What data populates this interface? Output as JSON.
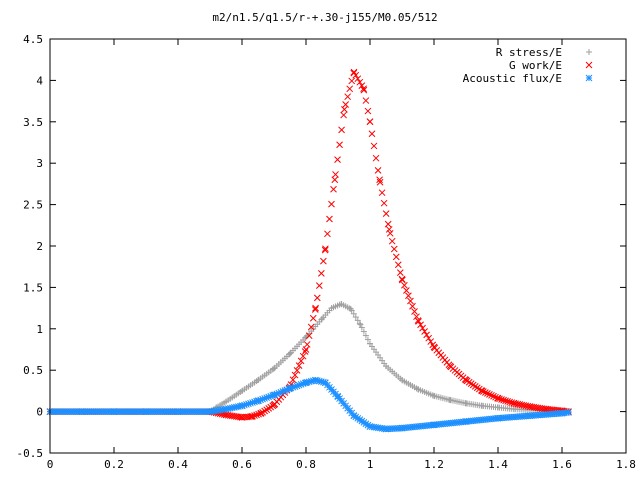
{
  "chart_data": {
    "type": "scatter",
    "title": "m2/n1.5/q1.5/r-+.30-j155/M0.05/512",
    "xlabel": "",
    "ylabel": "",
    "xlim": [
      0,
      1.8
    ],
    "ylim": [
      -0.5,
      4.5
    ],
    "grid": false,
    "legend_position": "top-right",
    "xticks": [
      "0",
      "0.2",
      "0.4",
      "0.6",
      "0.8",
      "1",
      "1.2",
      "1.4",
      "1.6",
      "1.8"
    ],
    "yticks": [
      "-0.5",
      "0",
      "0.5",
      "1",
      "1.5",
      "2",
      "2.5",
      "3",
      "3.5",
      "4",
      "4.5"
    ],
    "series": [
      {
        "name": "R stress/E",
        "color": "#a0a0a0",
        "marker": "plus",
        "x": [
          0,
          0.1,
          0.2,
          0.3,
          0.4,
          0.5,
          0.52,
          0.55,
          0.6,
          0.65,
          0.7,
          0.75,
          0.8,
          0.85,
          0.88,
          0.91,
          0.94,
          0.97,
          1.0,
          1.05,
          1.1,
          1.15,
          1.2,
          1.25,
          1.3,
          1.35,
          1.4,
          1.45,
          1.5,
          1.55,
          1.6,
          1.62
        ],
        "y": [
          0,
          0,
          0,
          0,
          0,
          0,
          0.05,
          0.12,
          0.25,
          0.38,
          0.52,
          0.7,
          0.9,
          1.12,
          1.25,
          1.3,
          1.24,
          1.05,
          0.82,
          0.55,
          0.38,
          0.27,
          0.19,
          0.14,
          0.1,
          0.07,
          0.05,
          0.03,
          0.02,
          0.01,
          0.0,
          0.0
        ]
      },
      {
        "name": "G work/E",
        "color": "#ff0000",
        "marker": "cross",
        "x": [
          0,
          0.1,
          0.2,
          0.3,
          0.4,
          0.5,
          0.55,
          0.6,
          0.63,
          0.66,
          0.7,
          0.75,
          0.8,
          0.83,
          0.86,
          0.89,
          0.92,
          0.95,
          0.98,
          1.0,
          1.03,
          1.06,
          1.1,
          1.15,
          1.2,
          1.25,
          1.3,
          1.35,
          1.4,
          1.45,
          1.5,
          1.55,
          1.6,
          1.62
        ],
        "y": [
          0,
          0,
          0,
          0,
          0,
          0,
          -0.04,
          -0.07,
          -0.06,
          -0.02,
          0.08,
          0.3,
          0.75,
          1.25,
          1.95,
          2.8,
          3.65,
          4.1,
          3.9,
          3.5,
          2.8,
          2.2,
          1.6,
          1.1,
          0.78,
          0.55,
          0.38,
          0.25,
          0.16,
          0.1,
          0.06,
          0.03,
          0.01,
          0.0
        ]
      },
      {
        "name": "Acoustic flux/E",
        "color": "#1e90ff",
        "marker": "star",
        "x": [
          0,
          0.1,
          0.2,
          0.3,
          0.4,
          0.5,
          0.55,
          0.6,
          0.65,
          0.7,
          0.75,
          0.8,
          0.83,
          0.86,
          0.9,
          0.95,
          1.0,
          1.05,
          1.1,
          1.2,
          1.3,
          1.4,
          1.5,
          1.6,
          1.62
        ],
        "y": [
          0,
          0,
          0,
          0,
          0,
          0,
          0.03,
          0.07,
          0.13,
          0.2,
          0.28,
          0.35,
          0.38,
          0.35,
          0.18,
          -0.05,
          -0.18,
          -0.21,
          -0.2,
          -0.16,
          -0.12,
          -0.08,
          -0.05,
          -0.02,
          -0.01
        ]
      }
    ]
  }
}
